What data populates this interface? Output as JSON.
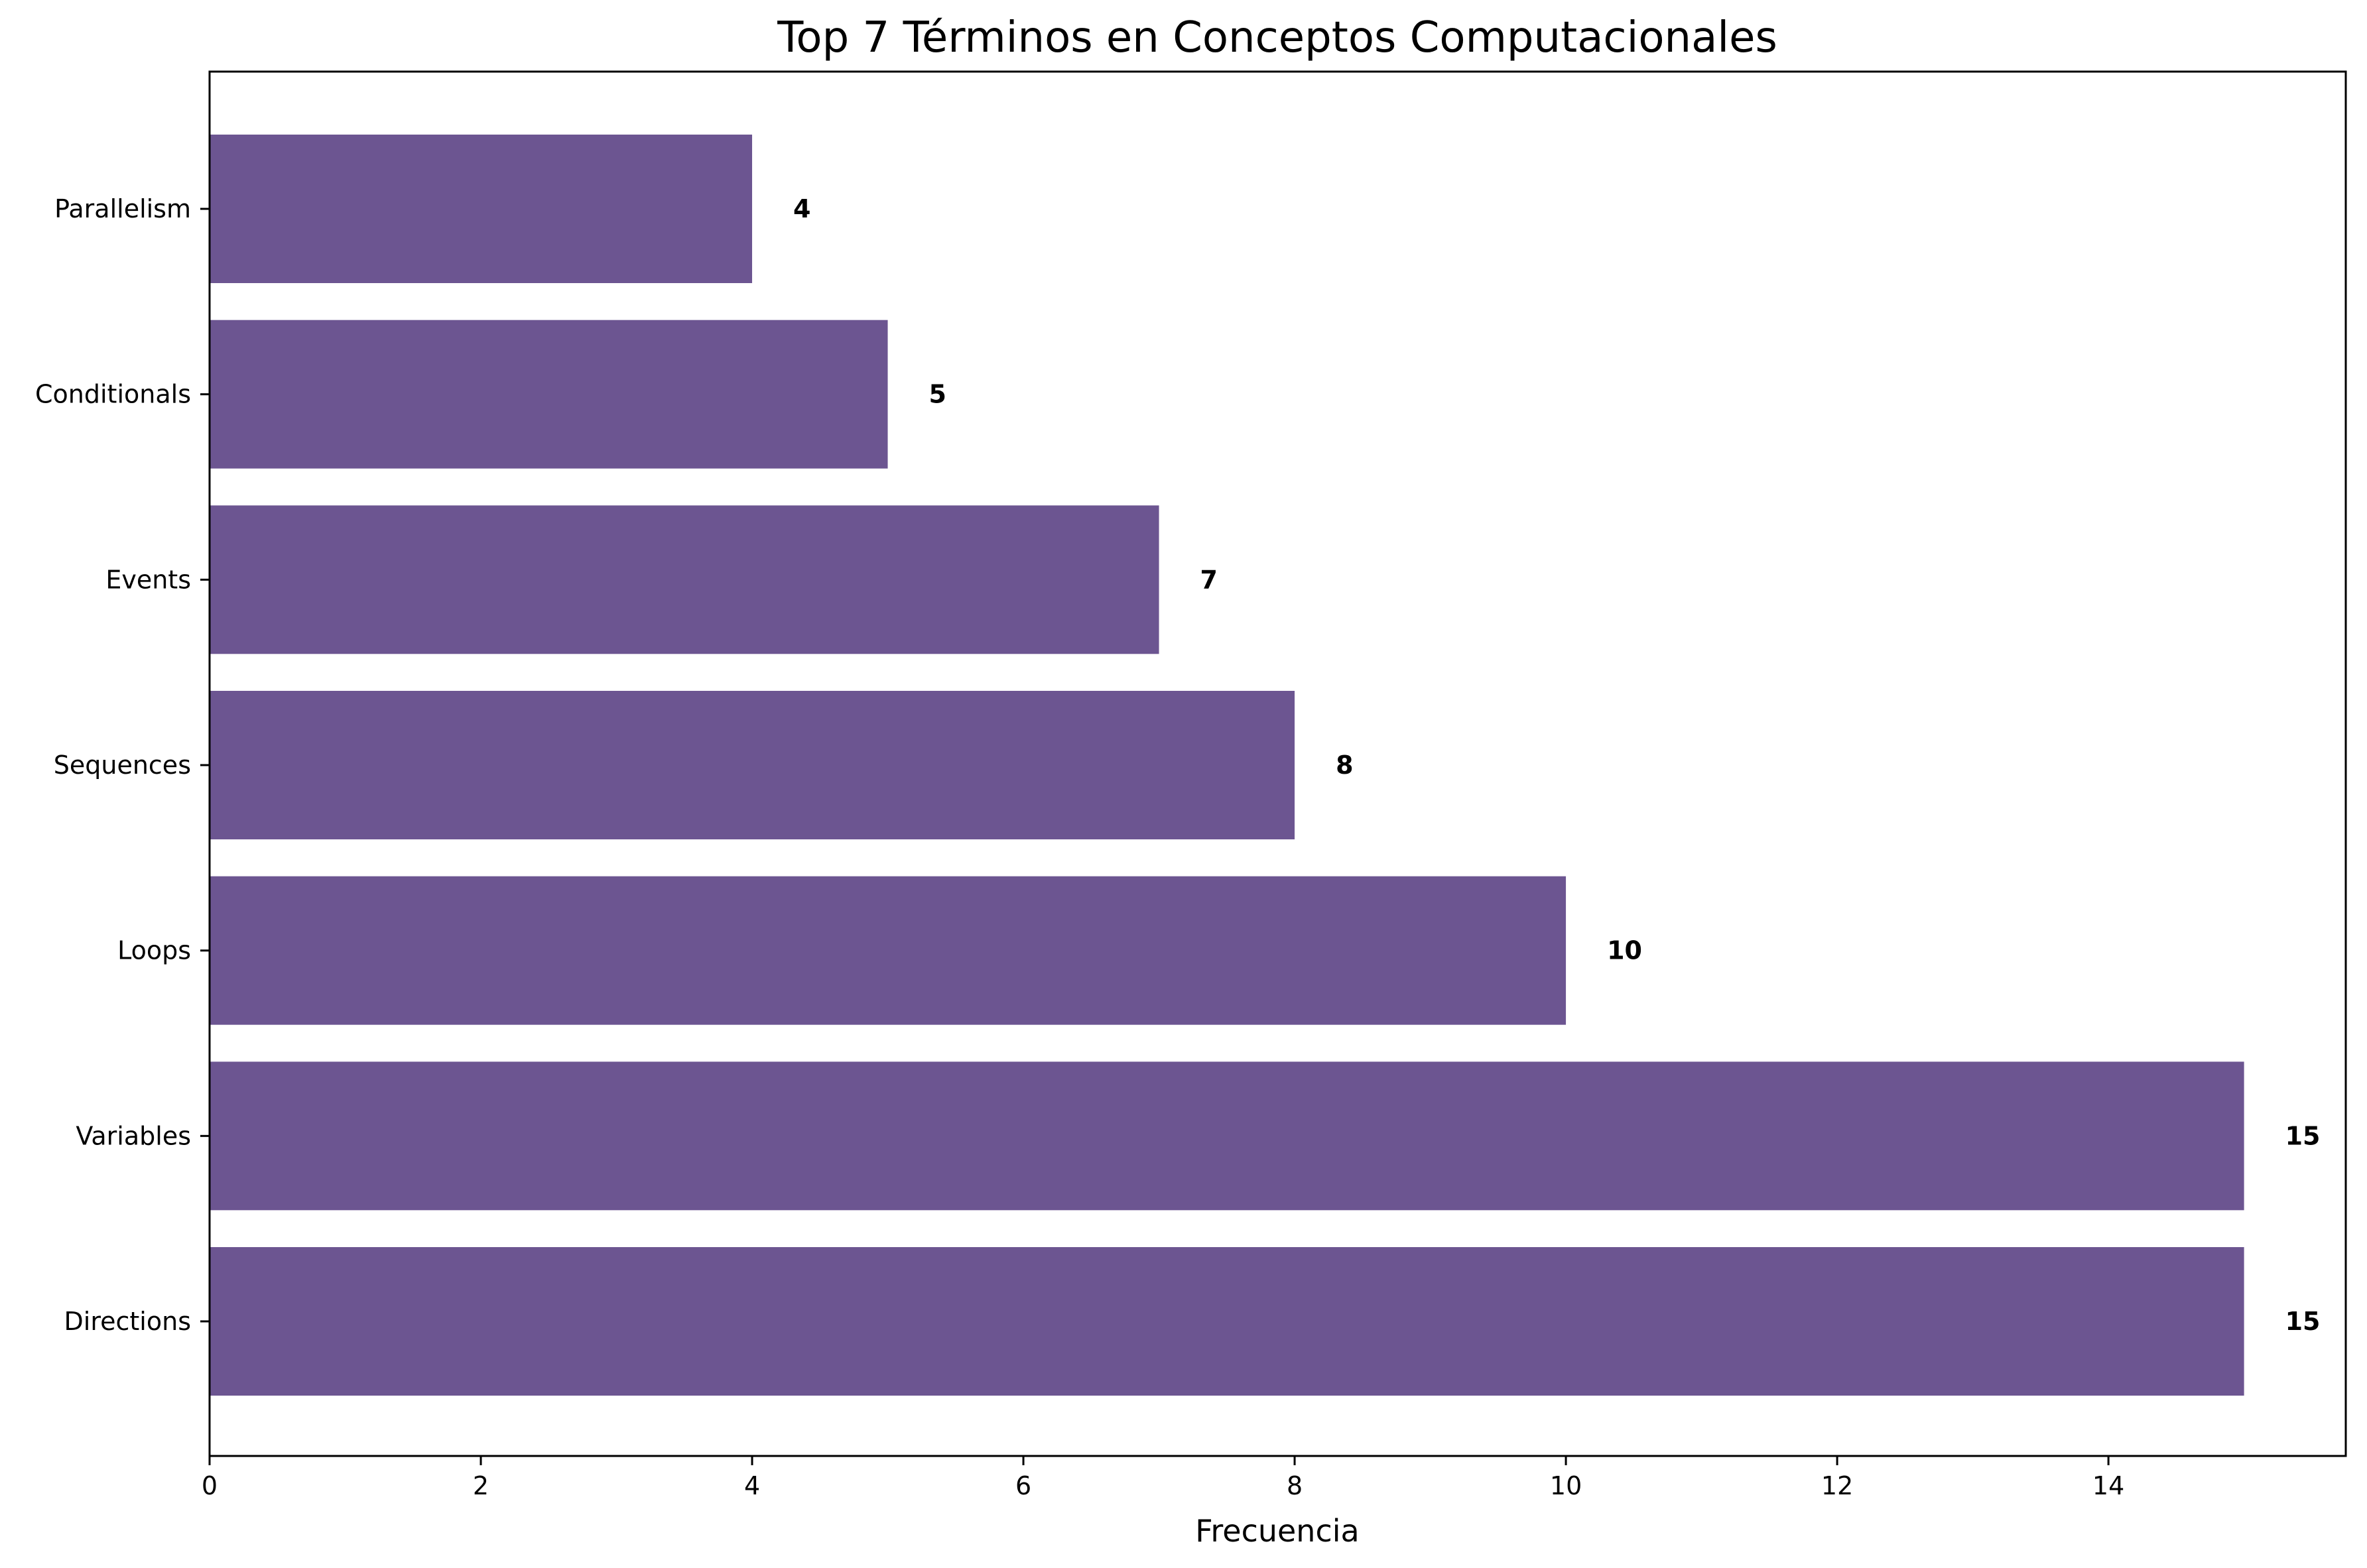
{
  "chart_data": {
    "type": "bar",
    "orientation": "horizontal",
    "title": "Top 7 Términos en Conceptos Computacionales",
    "xlabel": "Frecuencia",
    "ylabel": "",
    "categories": [
      "Directions",
      "Variables",
      "Loops",
      "Sequences",
      "Events",
      "Conditionals",
      "Parallelism"
    ],
    "values": [
      15,
      15,
      10,
      8,
      7,
      5,
      4
    ],
    "data_labels": [
      "15",
      "15",
      "10",
      "8",
      "7",
      "5",
      "4"
    ],
    "xlim": [
      0,
      15.75
    ],
    "xticks": [
      0,
      2,
      4,
      6,
      8,
      10,
      12,
      14
    ],
    "xtick_labels": [
      "0",
      "2",
      "4",
      "6",
      "8",
      "10",
      "12",
      "14"
    ],
    "bar_color": "#6c5591",
    "grid": false,
    "legend": "none"
  }
}
